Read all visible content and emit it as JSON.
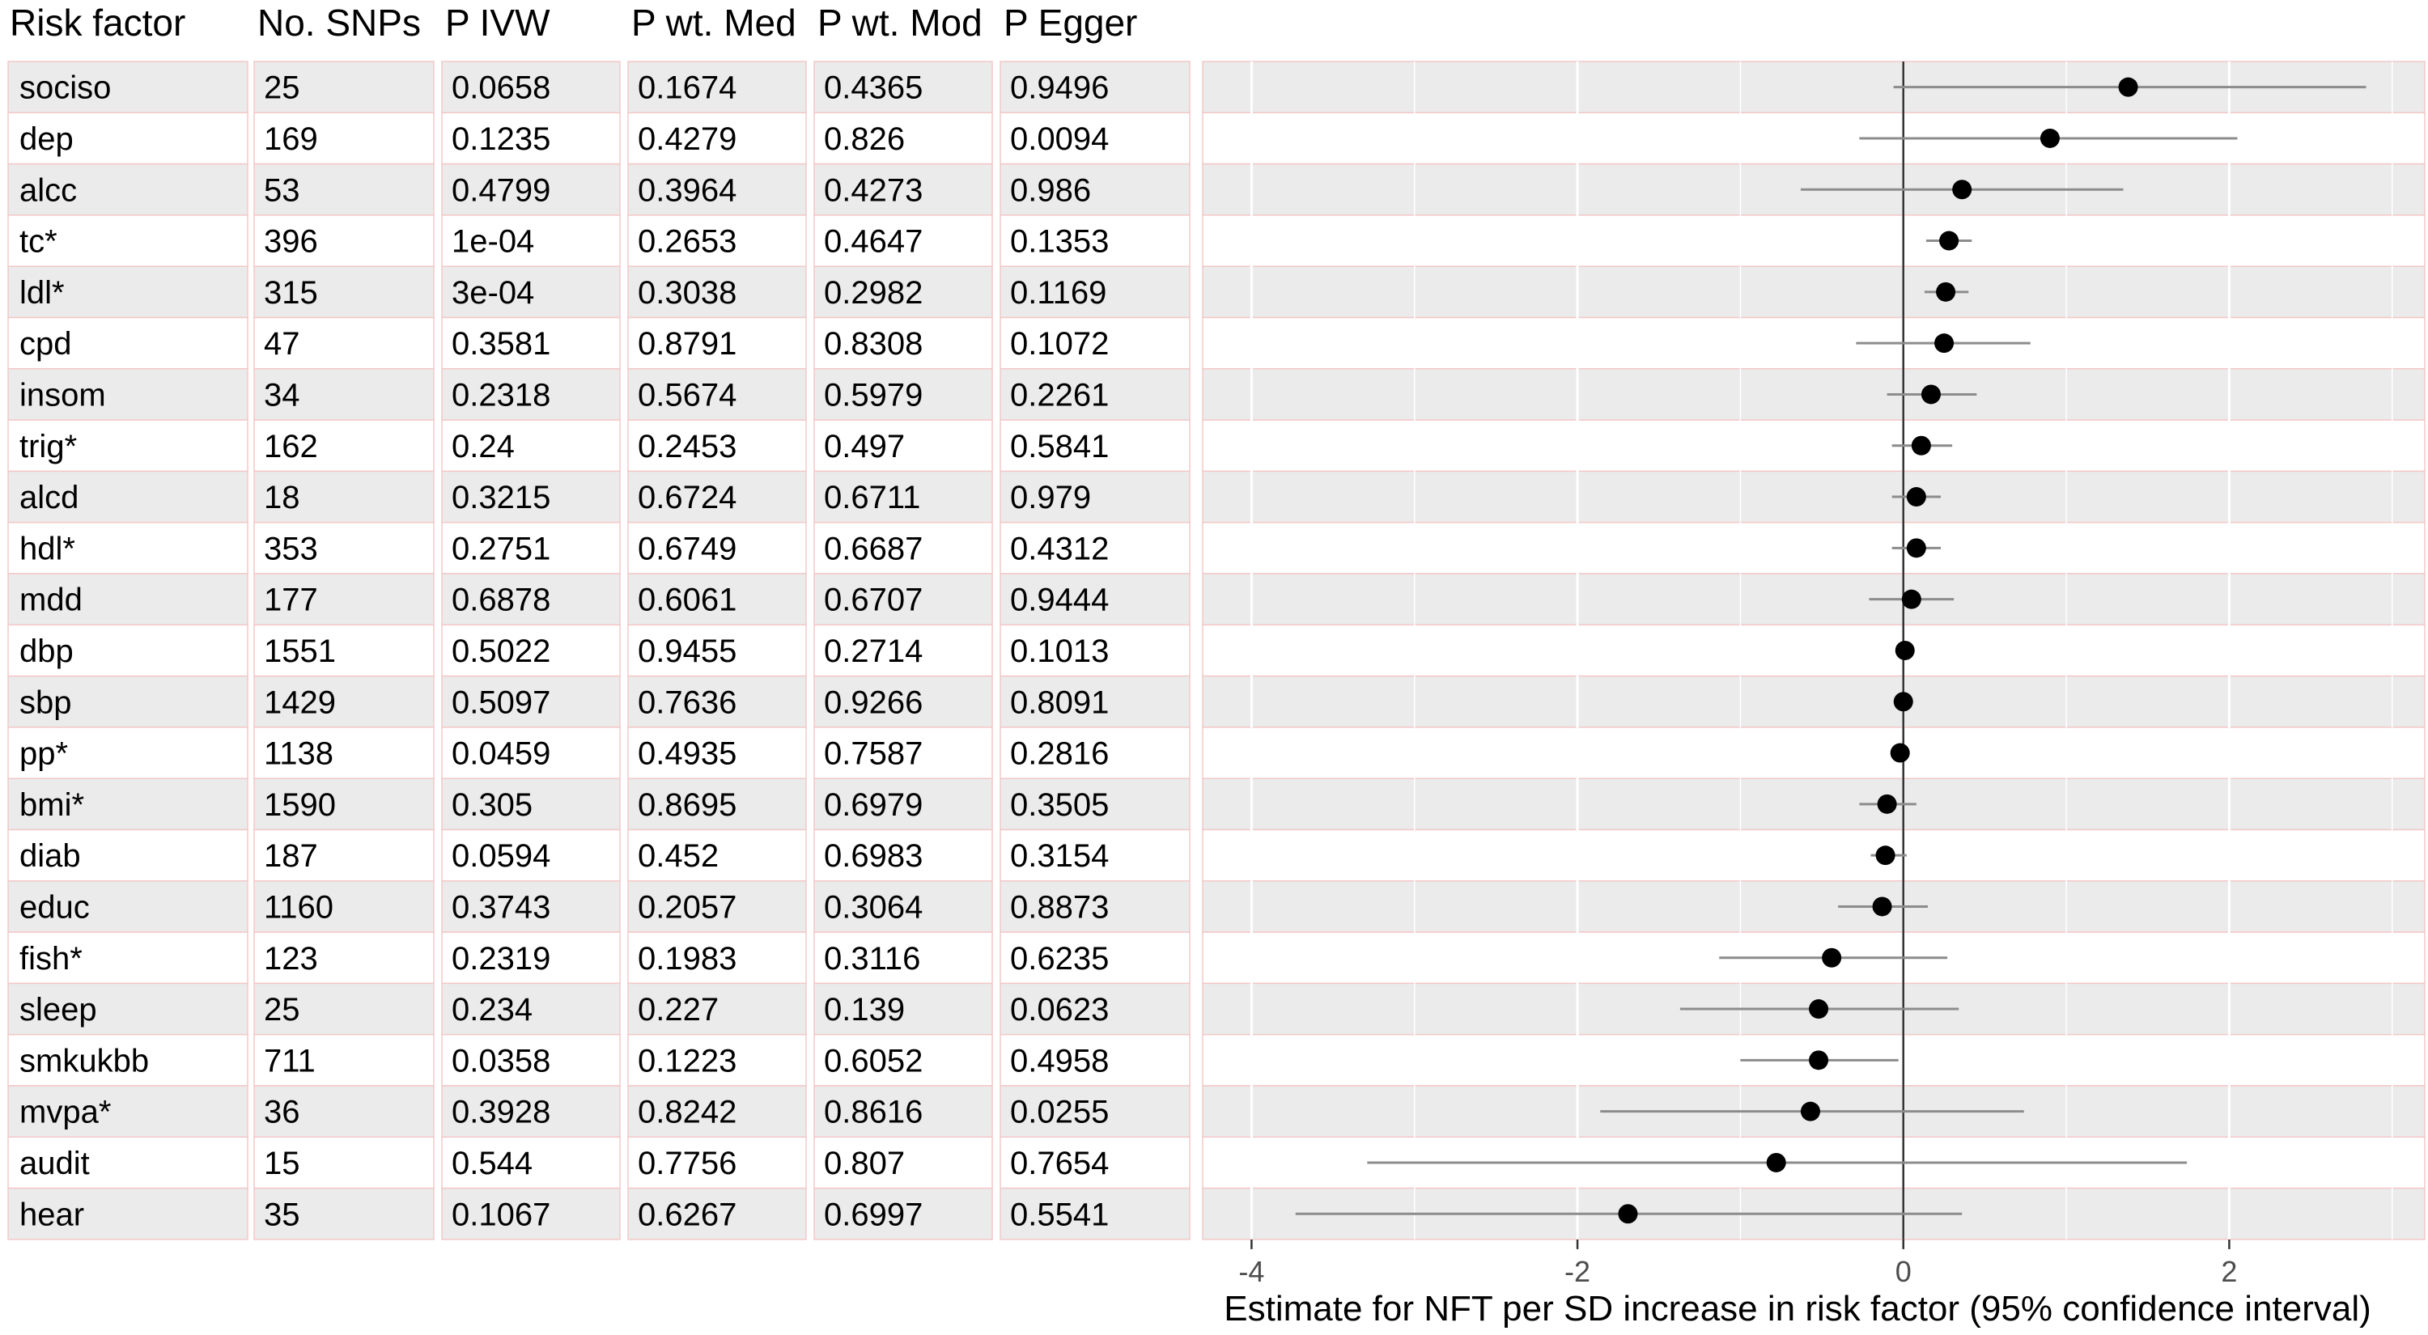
{
  "table": {
    "headers": [
      "Risk factor",
      "No. SNPs",
      "P IVW",
      "P wt. Med",
      "P wt. Mod",
      "P Egger"
    ],
    "rows": [
      {
        "factor": "sociso",
        "snps": "25",
        "p_ivw": "0.0658",
        "p_med": "0.1674",
        "p_mod": "0.4365",
        "p_egger": "0.9496"
      },
      {
        "factor": "dep",
        "snps": "169",
        "p_ivw": "0.1235",
        "p_med": "0.4279",
        "p_mod": "0.826",
        "p_egger": "0.0094"
      },
      {
        "factor": "alcc",
        "snps": "53",
        "p_ivw": "0.4799",
        "p_med": "0.3964",
        "p_mod": "0.4273",
        "p_egger": "0.986"
      },
      {
        "factor": "tc*",
        "snps": "396",
        "p_ivw": "1e-04",
        "p_med": "0.2653",
        "p_mod": "0.4647",
        "p_egger": "0.1353"
      },
      {
        "factor": "ldl*",
        "snps": "315",
        "p_ivw": "3e-04",
        "p_med": "0.3038",
        "p_mod": "0.2982",
        "p_egger": "0.1169"
      },
      {
        "factor": "cpd",
        "snps": "47",
        "p_ivw": "0.3581",
        "p_med": "0.8791",
        "p_mod": "0.8308",
        "p_egger": "0.1072"
      },
      {
        "factor": "insom",
        "snps": "34",
        "p_ivw": "0.2318",
        "p_med": "0.5674",
        "p_mod": "0.5979",
        "p_egger": "0.2261"
      },
      {
        "factor": "trig*",
        "snps": "162",
        "p_ivw": "0.24",
        "p_med": "0.2453",
        "p_mod": "0.497",
        "p_egger": "0.5841"
      },
      {
        "factor": "alcd",
        "snps": "18",
        "p_ivw": "0.3215",
        "p_med": "0.6724",
        "p_mod": "0.6711",
        "p_egger": "0.979"
      },
      {
        "factor": "hdl*",
        "snps": "353",
        "p_ivw": "0.2751",
        "p_med": "0.6749",
        "p_mod": "0.6687",
        "p_egger": "0.4312"
      },
      {
        "factor": "mdd",
        "snps": "177",
        "p_ivw": "0.6878",
        "p_med": "0.6061",
        "p_mod": "0.6707",
        "p_egger": "0.9444"
      },
      {
        "factor": "dbp",
        "snps": "1551",
        "p_ivw": "0.5022",
        "p_med": "0.9455",
        "p_mod": "0.2714",
        "p_egger": "0.1013"
      },
      {
        "factor": "sbp",
        "snps": "1429",
        "p_ivw": "0.5097",
        "p_med": "0.7636",
        "p_mod": "0.9266",
        "p_egger": "0.8091"
      },
      {
        "factor": "pp*",
        "snps": "1138",
        "p_ivw": "0.0459",
        "p_med": "0.4935",
        "p_mod": "0.7587",
        "p_egger": "0.2816"
      },
      {
        "factor": "bmi*",
        "snps": "1590",
        "p_ivw": "0.305",
        "p_med": "0.8695",
        "p_mod": "0.6979",
        "p_egger": "0.3505"
      },
      {
        "factor": "diab",
        "snps": "187",
        "p_ivw": "0.0594",
        "p_med": "0.452",
        "p_mod": "0.6983",
        "p_egger": "0.3154"
      },
      {
        "factor": "educ",
        "snps": "1160",
        "p_ivw": "0.3743",
        "p_med": "0.2057",
        "p_mod": "0.3064",
        "p_egger": "0.8873"
      },
      {
        "factor": "fish*",
        "snps": "123",
        "p_ivw": "0.2319",
        "p_med": "0.1983",
        "p_mod": "0.3116",
        "p_egger": "0.6235"
      },
      {
        "factor": "sleep",
        "snps": "25",
        "p_ivw": "0.234",
        "p_med": "0.227",
        "p_mod": "0.139",
        "p_egger": "0.0623"
      },
      {
        "factor": "smkukbb",
        "snps": "711",
        "p_ivw": "0.0358",
        "p_med": "0.1223",
        "p_mod": "0.6052",
        "p_egger": "0.4958"
      },
      {
        "factor": "mvpa*",
        "snps": "36",
        "p_ivw": "0.3928",
        "p_med": "0.8242",
        "p_mod": "0.8616",
        "p_egger": "0.0255"
      },
      {
        "factor": "audit",
        "snps": "15",
        "p_ivw": "0.544",
        "p_med": "0.7756",
        "p_mod": "0.807",
        "p_egger": "0.7654"
      },
      {
        "factor": "hear",
        "snps": "35",
        "p_ivw": "0.1067",
        "p_med": "0.6267",
        "p_mod": "0.6997",
        "p_egger": "0.5541"
      }
    ]
  },
  "chart_data": {
    "type": "scatter",
    "subtype": "forest plot with 95% confidence intervals",
    "xlabel": "Estimate for NFT per SD increase in risk factor (95% confidence interval)",
    "ylabel": "",
    "xlim": [
      -4.3,
      3.2
    ],
    "x_ticks": [
      -4,
      -2,
      0,
      2
    ],
    "x_tick_labels": [
      "-4",
      "-2",
      "0",
      "2"
    ],
    "reference_line_x": 0,
    "grid": true,
    "categories": [
      "sociso",
      "dep",
      "alcc",
      "tc*",
      "ldl*",
      "cpd",
      "insom",
      "trig*",
      "alcd",
      "hdl*",
      "mdd",
      "dbp",
      "sbp",
      "pp*",
      "bmi*",
      "diab",
      "educ",
      "fish*",
      "sleep",
      "smkukbb",
      "mvpa*",
      "audit",
      "hear"
    ],
    "estimates": [
      1.38,
      0.9,
      0.36,
      0.28,
      0.26,
      0.25,
      0.17,
      0.11,
      0.08,
      0.08,
      0.05,
      0.01,
      0.0,
      -0.02,
      -0.1,
      -0.11,
      -0.13,
      -0.44,
      -0.52,
      -0.52,
      -0.57,
      -0.78,
      -1.69
    ],
    "ci_lower": [
      -0.06,
      -0.27,
      -0.63,
      0.14,
      0.13,
      -0.29,
      -0.1,
      -0.07,
      -0.07,
      -0.07,
      -0.21,
      -0.01,
      -0.01,
      -0.03,
      -0.27,
      -0.2,
      -0.4,
      -1.13,
      -1.37,
      -1.0,
      -1.86,
      -3.29,
      -3.73
    ],
    "ci_upper": [
      2.84,
      2.05,
      1.35,
      0.42,
      0.4,
      0.78,
      0.45,
      0.3,
      0.23,
      0.23,
      0.31,
      0.03,
      0.02,
      0.0,
      0.08,
      0.02,
      0.15,
      0.27,
      0.34,
      -0.03,
      0.74,
      1.74,
      0.36
    ],
    "colors": {
      "point": "#000000",
      "ci_line": "#8c8c8c",
      "band": "#ebebeb",
      "grid_major": "#ffffff",
      "zero_line": "#333333",
      "row_border": "#f3c8c8"
    }
  }
}
